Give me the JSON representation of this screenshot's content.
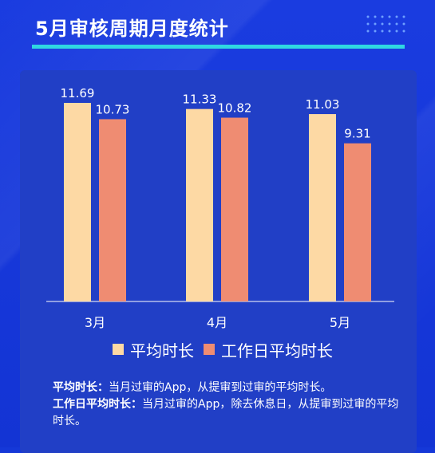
{
  "header": {
    "title": "5月审核周期月度统计"
  },
  "chart_data": {
    "type": "bar",
    "categories": [
      "3月",
      "4月",
      "5月"
    ],
    "series": [
      {
        "name": "平均时长",
        "values": [
          11.69,
          11.33,
          11.03
        ],
        "color": "#fdd9a4"
      },
      {
        "name": "工作日平均时长",
        "values": [
          10.73,
          10.82,
          9.31
        ],
        "color": "#ef8c72"
      }
    ],
    "ylim": [
      0,
      11.69
    ],
    "title": "",
    "xlabel": "",
    "ylabel": ""
  },
  "notes": [
    {
      "term": "平均时长",
      "sep": "：",
      "text": "当月过审的App，从提审到过审的平均时长。"
    },
    {
      "term": "工作日平均时长",
      "sep": "：",
      "text": "当月过审的App，除去休息日，从提审到过审的平均时长。"
    }
  ],
  "colors": {
    "background": "#1538d8",
    "panel": "#213fc6",
    "accent_line": "#2fd8e2",
    "text": "#ffffff"
  }
}
